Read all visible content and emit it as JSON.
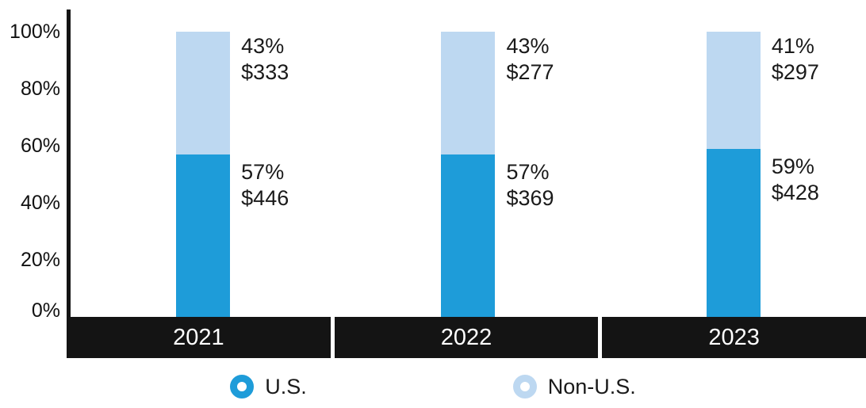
{
  "chart_data": {
    "type": "bar",
    "stacked": true,
    "title": "",
    "categories": [
      "2021",
      "2022",
      "2023"
    ],
    "series": [
      {
        "name": "U.S.",
        "color": "#1E9CD9",
        "values": [
          57,
          57,
          59
        ],
        "pct_labels": [
          "57%",
          "57%",
          "59%"
        ],
        "dollar_labels": [
          "$446",
          "$369",
          "$428"
        ]
      },
      {
        "name": "Non-U.S.",
        "color": "#BDD8F1",
        "values": [
          43,
          43,
          41
        ],
        "pct_labels": [
          "43%",
          "43%",
          "41%"
        ],
        "dollar_labels": [
          "$333",
          "$277",
          "$297"
        ]
      }
    ],
    "y_ticks": [
      {
        "label": "100%",
        "value": 100
      },
      {
        "label": "80%",
        "value": 80
      },
      {
        "label": "60%",
        "value": 60
      },
      {
        "label": "40%",
        "value": 40
      },
      {
        "label": "20%",
        "value": 20
      },
      {
        "label": "0%",
        "value": 0
      }
    ],
    "ylim": [
      0,
      100
    ],
    "grid": false,
    "legend_position": "bottom",
    "colors": {
      "us": "#1E9CD9",
      "non_us": "#BDD8F1",
      "axis_band": "#141414",
      "text": "#1a1a1a"
    }
  }
}
